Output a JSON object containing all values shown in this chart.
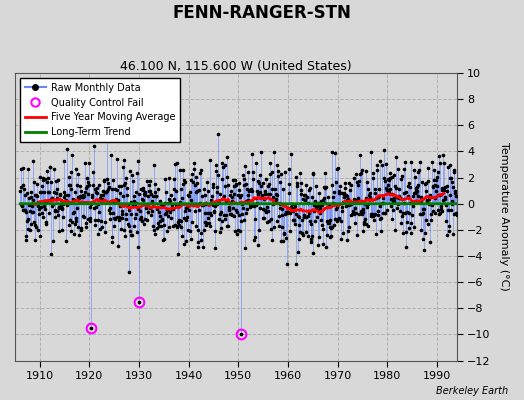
{
  "title": "FENN-RANGER-STN",
  "subtitle": "46.100 N, 115.600 W (United States)",
  "ylabel": "Temperature Anomaly (°C)",
  "watermark": "Berkeley Earth",
  "xlim": [
    1905,
    1994
  ],
  "ylim": [
    -12,
    10
  ],
  "yticks": [
    -12,
    -10,
    -8,
    -6,
    -4,
    -2,
    0,
    2,
    4,
    6,
    8,
    10
  ],
  "xticks": [
    1910,
    1920,
    1930,
    1940,
    1950,
    1960,
    1970,
    1980,
    1990
  ],
  "background_color": "#d8d8d8",
  "plot_background": "#d8d8d8",
  "grid_color": "#b0b0b0",
  "raw_line_color": "#6688ff",
  "raw_dot_color": "black",
  "moving_avg_color": "red",
  "trend_color": "green",
  "qc_fail_color": "magenta",
  "qc_fail_points_x": [
    1920.25,
    1930.0,
    1950.5
  ],
  "qc_fail_points_y": [
    -9.5,
    -7.5,
    -10.0
  ],
  "trend_value": 0.0,
  "seed": 42
}
